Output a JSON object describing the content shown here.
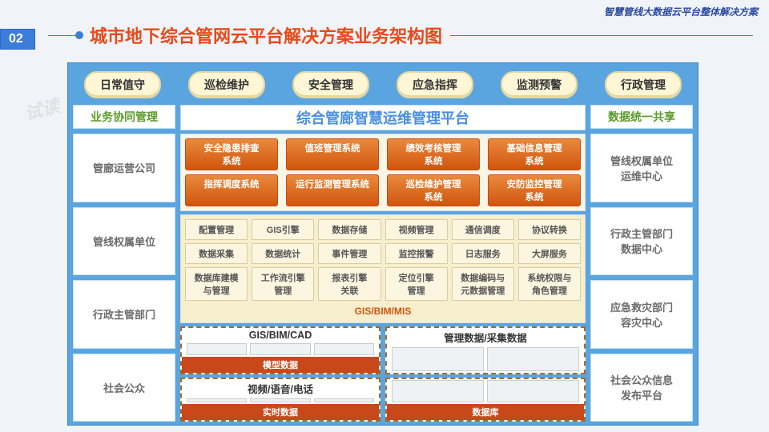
{
  "header_right": "智慧管线大数据云平台整体解决方案",
  "slide_number": "02",
  "title": "城市地下综合管网云平台解决方案业务架构图",
  "watermark": "试读",
  "top_tabs": [
    "日常值守",
    "巡检维护",
    "安全管理",
    "应急指挥",
    "监测预警",
    "行政管理"
  ],
  "left_header": "业务协同管理",
  "left_boxes": [
    "管廊运营公司",
    "管线权属单位",
    "行政主管部门",
    "社会公众"
  ],
  "right_header": "数据统一共享",
  "right_boxes": [
    "管线权属单位\n运维中心",
    "行政主管部门\n数据中心",
    "应急救灾部门\n容灾中心",
    "社会公众信息\n发布平台"
  ],
  "center_title": "综合管廊智慧运维管理平台",
  "orange_rows": [
    [
      "安全隐患排查\n系统",
      "值班管理系统",
      "绩效考核管理\n系统",
      "基础信息管理\n系统"
    ],
    [
      "指挥调度系统",
      "运行监测管理系统",
      "巡检维护管理\n系统",
      "安防监控管理\n系统"
    ]
  ],
  "tan_rows": [
    [
      "配置管理",
      "GIS引擎",
      "数据存储",
      "视频管理",
      "通信调度",
      "协议转换"
    ],
    [
      "数据采集",
      "数据统计",
      "事件管理",
      "监控报警",
      "日志服务",
      "大屏服务"
    ],
    [
      "数据库建模\n与管理",
      "工作流引擎\n管理",
      "报表引擎\n关联",
      "定位引擎\n管理",
      "数据编码与\n元数据管理",
      "系统权限与\n角色管理"
    ]
  ],
  "gis_label": "GIS/BIM/MIS",
  "bottom_left": {
    "top_title": "GIS/BIM/CAD",
    "top_sub": "模型数据",
    "bot_title": "视频/语音/电话",
    "bot_sub": "实时数据"
  },
  "bottom_right": {
    "top_title": "管理数据/采集数据",
    "top_sub": "",
    "bot_sub": "数据库"
  },
  "colors": {
    "bg_blue": "#5aa5e0",
    "orange": "#d1550c",
    "green_text": "#5a9a2a",
    "title_red": "#e84a1a",
    "header_blue": "#2a4a9e",
    "badge_blue": "#3b7dd8"
  }
}
